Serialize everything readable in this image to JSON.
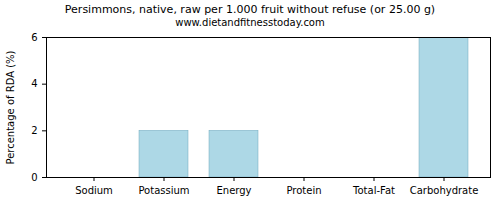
{
  "chart_data": {
    "type": "bar",
    "title": "Persimmons, native, raw per 1.000 fruit without refuse (or 25.00 g)",
    "subtitle": "www.dietandfitnesstoday.com",
    "y_label": "Percentage of RDA (%)",
    "categories": [
      "Sodium",
      "Potassium",
      "Energy",
      "Protein",
      "Total-Fat",
      "Carbohydrate"
    ],
    "values": [
      0,
      2,
      2,
      0,
      0,
      6
    ],
    "color": "#add8e6",
    "ylim": [
      0,
      6
    ],
    "yticks": [
      0,
      2,
      4,
      6
    ],
    "grid": false
  }
}
